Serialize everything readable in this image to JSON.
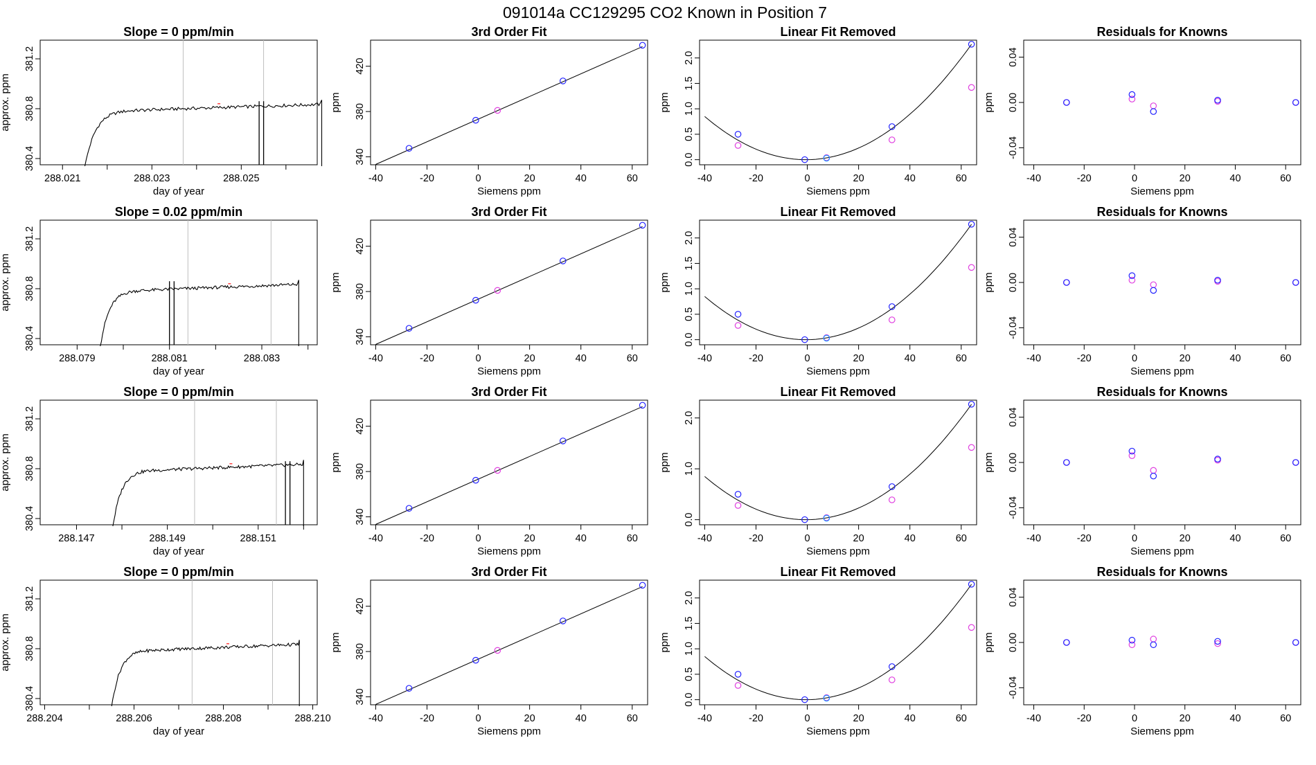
{
  "figure_title": "091014a      CC129295    CO2 Known in Position  7",
  "colors": {
    "line": "#000000",
    "vline": "#bebebe",
    "blue": "#2020ff",
    "magenta": "#e040e0",
    "cyan": "#1e90ff",
    "red": "#ff4040"
  },
  "rows": [
    {
      "slope_title": "Slope =  0  ppm/min",
      "time_start": 288.0215,
      "time_end": 288.0268,
      "time_ticks": [
        "288.021",
        "288.023",
        "288.025"
      ],
      "time_tick_values": [
        288.021,
        288.023,
        288.025
      ],
      "time_minor": [
        288.022,
        288.024,
        288.026
      ],
      "xlim": [
        288.0205,
        288.0267
      ],
      "lines": [
        288.0237,
        288.0255
      ],
      "spikes": [
        288.0254,
        288.0255
      ],
      "red_mark": 288.0245,
      "fit_quad": [
        0.0089,
        0.0175,
        0.0
      ]
    },
    {
      "slope_title": "Slope =  0.02  ppm/min",
      "time_start": 288.0795,
      "time_end": 288.0838,
      "time_ticks": [
        "288.079",
        "288.081",
        "288.083"
      ],
      "time_tick_values": [
        288.079,
        288.081,
        288.083
      ],
      "time_minor": [
        288.08,
        288.082,
        288.084
      ],
      "xlim": [
        288.0782,
        288.0842
      ],
      "lines": [
        288.0814,
        288.0832
      ],
      "spikes": [
        288.081,
        288.0811
      ],
      "red_mark": 288.0823,
      "fit_quad": [
        0.0089,
        0.0175,
        0.0
      ]
    },
    {
      "slope_title": "Slope =  0  ppm/min",
      "time_start": 288.1478,
      "time_end": 288.152,
      "time_ticks": [
        "288.147",
        "288.149",
        "288.151"
      ],
      "time_tick_values": [
        288.147,
        288.149,
        288.151
      ],
      "time_minor": [
        288.148,
        288.15,
        288.152
      ],
      "xlim": [
        288.1462,
        288.1523
      ],
      "lines": [
        288.1496,
        288.1514
      ],
      "spikes": [
        288.1516,
        288.1517
      ],
      "red_mark": 288.1504,
      "fit_quad": [
        0.0089,
        0.0175,
        0.0
      ]
    },
    {
      "slope_title": "Slope =  0  ppm/min",
      "time_start": 288.2055,
      "time_end": 288.2097,
      "time_ticks": [
        "288.204",
        "288.206",
        "288.208",
        "288.210"
      ],
      "time_tick_values": [
        288.204,
        288.206,
        288.208,
        288.21
      ],
      "time_minor": [
        288.205,
        288.207,
        288.209
      ],
      "xlim": [
        288.2039,
        288.2101
      ],
      "lines": [
        288.2073,
        288.2091
      ],
      "spikes": [],
      "red_mark": 288.2081,
      "fit_quad": [
        0.0089,
        0.0175,
        0.0
      ]
    }
  ],
  "panel_titles": {
    "fit": "3rd Order Fit",
    "lin": "Linear Fit Removed",
    "res": "Residuals for Knowns"
  },
  "axis_labels": {
    "time_x": "day of year",
    "time_y": "approx. ppm",
    "siemens_x": "Siemens ppm",
    "ppm_y": "ppm"
  },
  "chart_data": [
    {
      "type": "line",
      "title": "Slope =  0  ppm/min",
      "xlabel": "day of year",
      "ylabel": "approx. ppm",
      "ylim": [
        380.35,
        381.35
      ],
      "y_ticks": [
        380.4,
        380.8,
        381.2
      ],
      "plateau_ppm": 380.84
    },
    {
      "type": "scatter",
      "title": "3rd Order Fit",
      "xlabel": "Siemens ppm",
      "ylabel": "ppm",
      "xlim": [
        -42,
        66
      ],
      "ylim": [
        333,
        443
      ],
      "x_ticks": [
        -40,
        -20,
        0,
        20,
        40,
        60
      ],
      "y_ticks": [
        340,
        380,
        420
      ],
      "series": [
        {
          "name": "knowns",
          "x": [
            -27,
            -1,
            7.5,
            33,
            64
          ],
          "y": [
            347.5,
            372.3,
            381,
            407,
            438.5
          ]
        }
      ]
    },
    {
      "type": "scatter",
      "title": "Linear Fit Removed",
      "xlabel": "Siemens ppm",
      "ylabel": "ppm",
      "xlim": [
        -42,
        66
      ],
      "ylim": [
        -0.1,
        2.35
      ],
      "x_ticks": [
        -40,
        -20,
        0,
        20,
        40,
        60
      ],
      "series": [
        {
          "name": "knowns",
          "x": [
            -27,
            -1,
            7.5,
            33,
            64
          ],
          "y": [
            0.5,
            0.0,
            0.03,
            0.65,
            2.27
          ]
        },
        {
          "name": "samples",
          "x": [
            -27,
            7.5,
            33,
            64
          ],
          "y": [
            0.28,
            0.04,
            0.39,
            1.42
          ]
        }
      ]
    },
    {
      "type": "scatter",
      "title": "Residuals for Knowns",
      "xlabel": "Siemens ppm",
      "ylabel": "ppm",
      "xlim": [
        -44,
        66
      ],
      "ylim": [
        -0.055,
        0.055
      ],
      "x_ticks": [
        -40,
        -20,
        0,
        20,
        40,
        60
      ],
      "y_ticks": [
        -0.04,
        0.0,
        0.04
      ],
      "series": [
        {
          "name": "row1-blue",
          "x": [
            -27,
            -1,
            7.5,
            33,
            64
          ],
          "y": [
            0.0,
            0.007,
            -0.008,
            0.002,
            0.0
          ]
        },
        {
          "name": "row1-magenta",
          "x": [
            -27,
            -1,
            7.5,
            33,
            64
          ],
          "y": [
            0.0,
            0.003,
            -0.003,
            0.001,
            0.0
          ]
        },
        {
          "name": "row2-blue",
          "x": [
            -27,
            -1,
            7.5,
            33,
            64
          ],
          "y": [
            0.0,
            0.006,
            -0.007,
            0.002,
            0.0
          ]
        },
        {
          "name": "row2-magenta",
          "x": [
            -27,
            -1,
            7.5,
            33,
            64
          ],
          "y": [
            0.0,
            0.002,
            -0.002,
            0.001,
            0.0
          ]
        },
        {
          "name": "row3-blue",
          "x": [
            -27,
            -1,
            7.5,
            33,
            64
          ],
          "y": [
            0.0,
            0.01,
            -0.012,
            0.003,
            0.0
          ]
        },
        {
          "name": "row3-magenta",
          "x": [
            -27,
            -1,
            7.5,
            33,
            64
          ],
          "y": [
            0.0,
            0.006,
            -0.007,
            0.002,
            0.0
          ]
        },
        {
          "name": "row4-blue",
          "x": [
            -27,
            -1,
            7.5,
            33,
            64
          ],
          "y": [
            0.0,
            0.002,
            -0.002,
            0.001,
            0.0
          ]
        },
        {
          "name": "row4-magenta",
          "x": [
            -27,
            -1,
            7.5,
            33,
            64
          ],
          "y": [
            0.0,
            -0.002,
            0.003,
            -0.001,
            0.0
          ]
        }
      ]
    }
  ]
}
